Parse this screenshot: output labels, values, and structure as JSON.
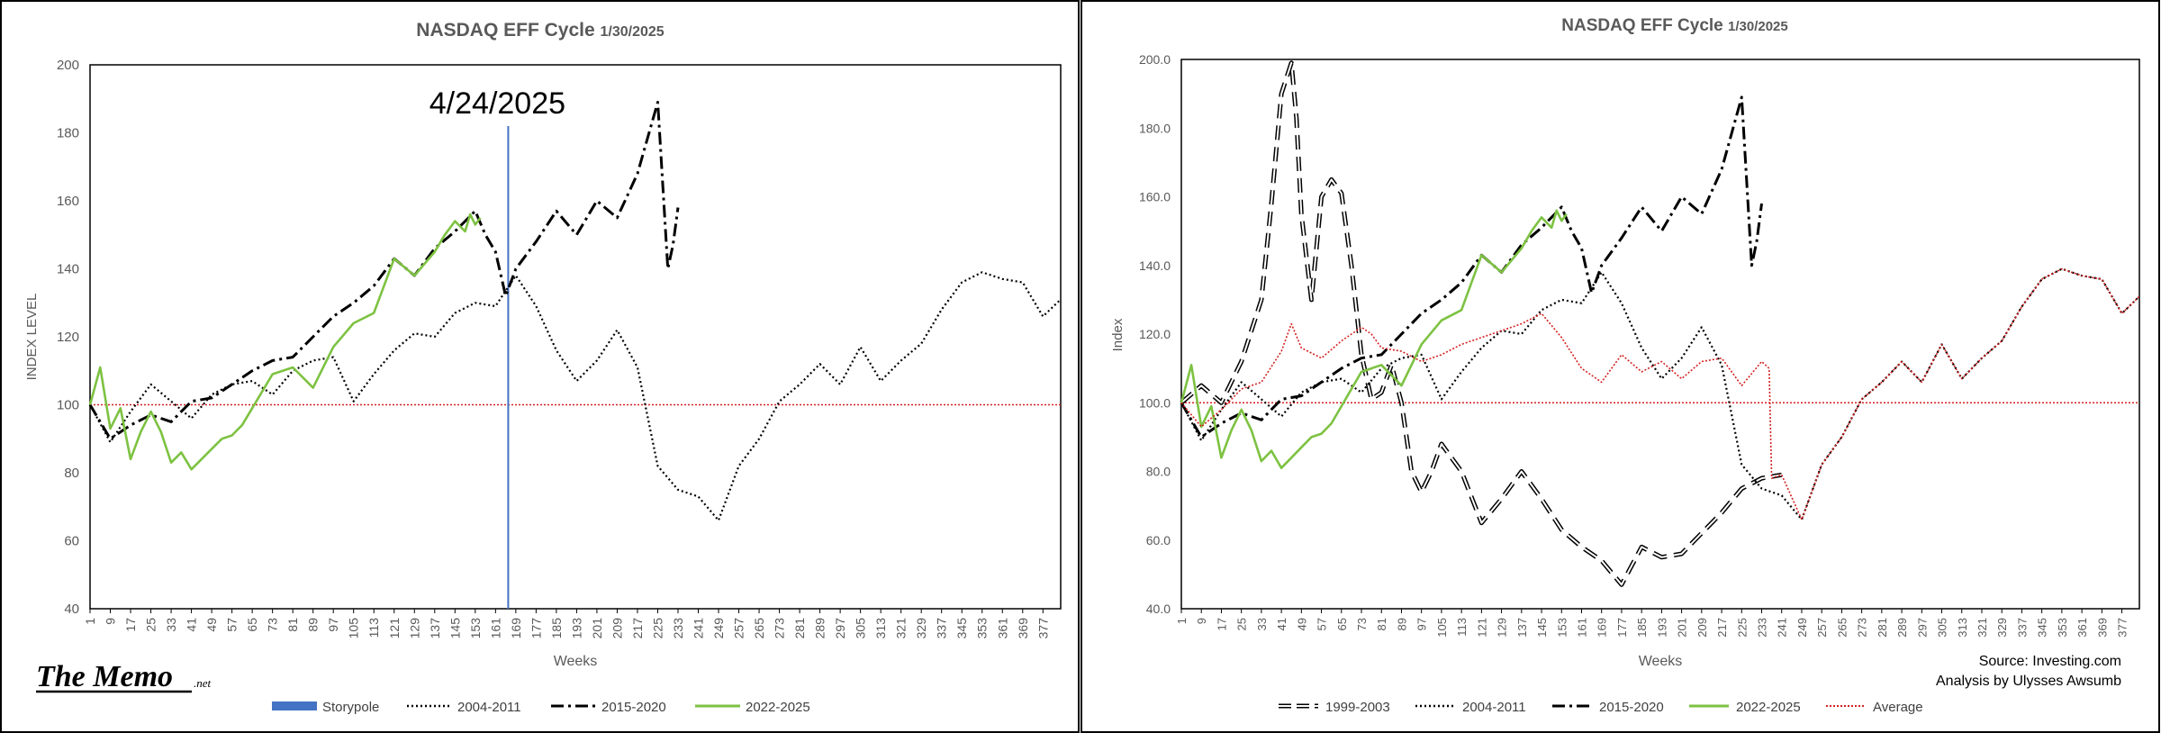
{
  "chart_data": [
    {
      "id": "left",
      "type": "line",
      "title": "NASDAQ EFF Cycle",
      "title_date": "1/30/2025",
      "xlabel": "Weeks",
      "ylabel": "INDEX LEVEL",
      "ylim": [
        40,
        200
      ],
      "yticks": [
        "40",
        "60",
        "80",
        "100",
        "120",
        "140",
        "160",
        "180",
        "200"
      ],
      "ytick_values": [
        40,
        60,
        80,
        100,
        120,
        140,
        160,
        180,
        200
      ],
      "xlim": [
        1,
        384
      ],
      "xticks": [
        "1",
        "9",
        "17",
        "25",
        "33",
        "41",
        "49",
        "57",
        "65",
        "73",
        "81",
        "89",
        "97",
        "105",
        "113",
        "121",
        "129",
        "137",
        "145",
        "153",
        "161",
        "169",
        "177",
        "185",
        "193",
        "201",
        "209",
        "217",
        "225",
        "233",
        "241",
        "249",
        "257",
        "265",
        "273",
        "281",
        "289",
        "297",
        "305",
        "313",
        "321",
        "329",
        "337",
        "345",
        "353",
        "361",
        "369",
        "377"
      ],
      "reference_line": {
        "value": 100,
        "color": "#d42020"
      },
      "storypole": {
        "week": 166,
        "label": "4/24/2025",
        "color": "#4472c4"
      },
      "legend": [
        "Storypole",
        "2004-2011",
        "2015-2020",
        "2022-2025"
      ],
      "series": [
        {
          "name": "2004-2011",
          "style": "dotted",
          "color": "#000000",
          "x": [
            1,
            9,
            17,
            25,
            33,
            41,
            49,
            57,
            65,
            73,
            81,
            89,
            97,
            105,
            113,
            121,
            129,
            137,
            145,
            153,
            161,
            169,
            177,
            185,
            193,
            201,
            209,
            217,
            225,
            233,
            241,
            249,
            257,
            265,
            273,
            281,
            289,
            297,
            305,
            313,
            321,
            329,
            337,
            345,
            353,
            361,
            369,
            377,
            384
          ],
          "values": [
            100,
            89,
            98,
            106,
            101,
            96,
            103,
            106,
            107,
            103,
            110,
            113,
            114,
            101,
            109,
            116,
            121,
            120,
            127,
            130,
            129,
            138,
            129,
            116,
            107,
            113,
            122,
            111,
            82,
            75,
            73,
            66,
            82,
            90,
            101,
            106,
            112,
            106,
            117,
            107,
            113,
            118,
            128,
            136,
            139,
            137,
            136,
            126,
            131
          ]
        },
        {
          "name": "2015-2020",
          "style": "dashdot",
          "color": "#000000",
          "x": [
            1,
            9,
            17,
            25,
            33,
            41,
            49,
            57,
            65,
            73,
            81,
            89,
            97,
            105,
            113,
            121,
            129,
            137,
            145,
            153,
            157,
            161,
            165,
            169,
            177,
            185,
            193,
            201,
            209,
            217,
            225,
            229,
            231,
            233
          ],
          "values": [
            100,
            90,
            94,
            97,
            95,
            101,
            102,
            106,
            110,
            113,
            114,
            120,
            126,
            130,
            135,
            143,
            138,
            146,
            151,
            157,
            150,
            145,
            132,
            140,
            148,
            157,
            150,
            160,
            155,
            168,
            189,
            140,
            147,
            158
          ]
        },
        {
          "name": "2022-2025",
          "style": "solid",
          "color": "#7dc242",
          "x": [
            1,
            5,
            9,
            13,
            17,
            21,
            25,
            29,
            33,
            37,
            41,
            45,
            49,
            53,
            57,
            61,
            65,
            73,
            81,
            89,
            97,
            105,
            113,
            121,
            129,
            137,
            141,
            145,
            149,
            151,
            153,
            155
          ],
          "values": [
            100,
            111,
            93,
            99,
            84,
            92,
            98,
            92,
            83,
            86,
            81,
            84,
            87,
            90,
            91,
            94,
            99,
            109,
            111,
            105,
            117,
            124,
            127,
            143,
            138,
            145,
            150,
            154,
            151,
            156,
            153,
            155
          ]
        }
      ]
    },
    {
      "id": "right",
      "type": "line",
      "title": "NASDAQ EFF Cycle",
      "title_date": "1/30/2025",
      "xlabel": "Weeks",
      "ylabel": "Index",
      "ylim": [
        40,
        200
      ],
      "yticks": [
        "40.0",
        "60.0",
        "80.0",
        "100.0",
        "120.0",
        "140.0",
        "160.0",
        "180.0",
        "200.0"
      ],
      "ytick_values": [
        40,
        60,
        80,
        100,
        120,
        140,
        160,
        180,
        200
      ],
      "xlim": [
        1,
        384
      ],
      "xticks": [
        "1",
        "9",
        "17",
        "25",
        "33",
        "41",
        "49",
        "57",
        "65",
        "73",
        "81",
        "89",
        "97",
        "105",
        "113",
        "121",
        "129",
        "137",
        "145",
        "153",
        "161",
        "169",
        "177",
        "185",
        "193",
        "201",
        "209",
        "217",
        "225",
        "233",
        "241",
        "249",
        "257",
        "265",
        "273",
        "281",
        "289",
        "297",
        "305",
        "313",
        "321",
        "329",
        "337",
        "345",
        "353",
        "361",
        "369",
        "377"
      ],
      "reference_line": {
        "value": 100,
        "color": "#d42020"
      },
      "legend": [
        "1999-2003",
        "2004-2011",
        "2015-2020",
        "2022-2025",
        "Average"
      ],
      "source": "Source: Investing.com",
      "analysis": "Analysis by Ulysses Awsumb",
      "series": [
        {
          "name": "1999-2003",
          "style": "doubledash",
          "color": "#000000",
          "x": [
            1,
            9,
            17,
            25,
            33,
            37,
            41,
            45,
            47,
            49,
            53,
            57,
            61,
            65,
            69,
            73,
            77,
            81,
            85,
            89,
            93,
            97,
            101,
            105,
            109,
            113,
            121,
            129,
            137,
            145,
            153,
            161,
            169,
            177,
            185,
            193,
            201,
            209,
            217,
            225,
            233,
            241
          ],
          "values": [
            100,
            105,
            100,
            112,
            130,
            158,
            190,
            199,
            183,
            155,
            130,
            160,
            165,
            161,
            140,
            114,
            101,
            103,
            111,
            100,
            80,
            74,
            80,
            88,
            84,
            80,
            65,
            72,
            80,
            72,
            63,
            58,
            54,
            47,
            58,
            55,
            56,
            62,
            68,
            75,
            78,
            79
          ]
        },
        {
          "name": "2004-2011",
          "style": "dotted",
          "color": "#000000",
          "x": [
            1,
            9,
            17,
            25,
            33,
            41,
            49,
            57,
            65,
            73,
            81,
            89,
            97,
            105,
            113,
            121,
            129,
            137,
            145,
            153,
            161,
            169,
            177,
            185,
            193,
            201,
            209,
            217,
            225,
            233,
            241,
            249,
            257,
            265,
            273,
            281,
            289,
            297,
            305,
            313,
            321,
            329,
            337,
            345,
            353,
            361,
            369,
            377,
            384
          ],
          "values": [
            100,
            89,
            98,
            106,
            101,
            96,
            103,
            106,
            107,
            103,
            110,
            113,
            114,
            101,
            109,
            116,
            121,
            120,
            127,
            130,
            129,
            138,
            129,
            116,
            107,
            113,
            122,
            111,
            82,
            75,
            73,
            66,
            82,
            90,
            101,
            106,
            112,
            106,
            117,
            107,
            113,
            118,
            128,
            136,
            139,
            137,
            136,
            126,
            131
          ]
        },
        {
          "name": "2015-2020",
          "style": "dashdot",
          "color": "#000000",
          "x": [
            1,
            9,
            17,
            25,
            33,
            41,
            49,
            57,
            65,
            73,
            81,
            89,
            97,
            105,
            113,
            121,
            129,
            137,
            145,
            153,
            157,
            161,
            165,
            169,
            177,
            185,
            193,
            201,
            209,
            217,
            225,
            229,
            231,
            233
          ],
          "values": [
            100,
            90,
            94,
            97,
            95,
            101,
            102,
            106,
            110,
            113,
            114,
            120,
            126,
            130,
            135,
            143,
            138,
            146,
            151,
            157,
            150,
            145,
            132,
            140,
            148,
            157,
            150,
            160,
            155,
            168,
            189,
            140,
            147,
            158
          ]
        },
        {
          "name": "2022-2025",
          "style": "solid",
          "color": "#7dc242",
          "x": [
            1,
            5,
            9,
            13,
            17,
            21,
            25,
            29,
            33,
            37,
            41,
            45,
            49,
            53,
            57,
            61,
            65,
            73,
            81,
            89,
            97,
            105,
            113,
            121,
            129,
            137,
            141,
            145,
            149,
            151,
            153,
            155
          ],
          "values": [
            100,
            111,
            93,
            99,
            84,
            92,
            98,
            92,
            83,
            86,
            81,
            84,
            87,
            90,
            91,
            94,
            99,
            109,
            111,
            105,
            117,
            124,
            127,
            143,
            138,
            145,
            150,
            154,
            151,
            156,
            153,
            155
          ]
        },
        {
          "name": "Average",
          "style": "reddotted",
          "color": "#d42020",
          "x": [
            1,
            9,
            17,
            25,
            33,
            41,
            45,
            49,
            57,
            65,
            73,
            77,
            81,
            89,
            97,
            105,
            113,
            121,
            129,
            137,
            145,
            153,
            161,
            169,
            177,
            185,
            193,
            201,
            209,
            217,
            225,
            233,
            236,
            237,
            241,
            249,
            257,
            265,
            273,
            281,
            289,
            297,
            305,
            313,
            321,
            329,
            337,
            345,
            353,
            361,
            369,
            377,
            384
          ],
          "values": [
            100,
            93,
            98,
            104,
            106,
            115,
            123,
            116,
            113,
            118,
            122,
            120,
            116,
            115,
            112,
            114,
            117,
            119,
            121,
            123,
            126,
            119,
            110,
            106,
            114,
            109,
            112,
            107,
            112,
            113,
            105,
            112,
            110,
            78,
            79,
            66,
            82,
            90,
            101,
            106,
            112,
            106,
            117,
            107,
            113,
            118,
            128,
            136,
            139,
            137,
            136,
            126,
            131
          ]
        }
      ]
    }
  ],
  "logo": {
    "text": "The Memo",
    "suffix": ".net"
  }
}
